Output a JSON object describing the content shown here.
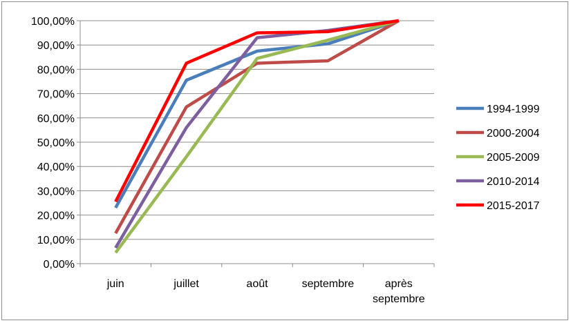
{
  "chart_data": {
    "type": "line",
    "title": "",
    "xlabel": "",
    "ylabel": "",
    "categories": [
      "juin",
      "juillet",
      "août",
      "septembre",
      "après septembre"
    ],
    "category_lines": [
      [
        "juin"
      ],
      [
        "juillet"
      ],
      [
        "août"
      ],
      [
        "septembre"
      ],
      [
        "après",
        "septembre"
      ]
    ],
    "ylim": [
      0,
      100
    ],
    "y_ticks": [
      0,
      10,
      20,
      30,
      40,
      50,
      60,
      70,
      80,
      90,
      100
    ],
    "y_tick_labels": [
      "0,00%",
      "10,00%",
      "20,00%",
      "30,00%",
      "40,00%",
      "50,00%",
      "60,00%",
      "70,00%",
      "80,00%",
      "90,00%",
      "100,00%"
    ],
    "grid": true,
    "legend_position": "right",
    "series": [
      {
        "name": "1994-1999",
        "color": "#4a7ebb",
        "values": [
          23,
          75.5,
          87.5,
          90.5,
          100
        ]
      },
      {
        "name": "2000-2004",
        "color": "#be4b48",
        "values": [
          12.5,
          64.5,
          82.5,
          83.5,
          100
        ]
      },
      {
        "name": "2005-2009",
        "color": "#98b954",
        "values": [
          4.5,
          44,
          84.5,
          92,
          100
        ]
      },
      {
        "name": "2010-2014",
        "color": "#7d5fa0",
        "values": [
          6.5,
          56,
          93,
          96,
          100
        ]
      },
      {
        "name": "2015-2017",
        "color": "#ff0000",
        "values": [
          25.5,
          82.5,
          95,
          95.5,
          100
        ]
      }
    ]
  }
}
